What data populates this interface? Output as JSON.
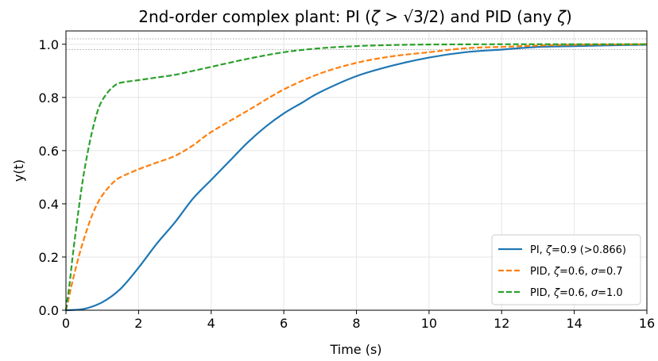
{
  "chart_data": {
    "type": "line",
    "title": "2nd-order complex plant: PI (ζ > √3/2) and PID (any ζ)",
    "title_parts": {
      "before": "2nd-order complex plant: PI (",
      "zeta": "ζ",
      "gt": " > ",
      "radical_sign": "√",
      "radicand": "3",
      "fraction_tail": "/2) and PID (any ",
      "zeta2": "ζ",
      "end": ")"
    },
    "xlabel": "Time (s)",
    "ylabel": "y(t)",
    "xlim": [
      0,
      16
    ],
    "ylim": [
      0,
      1.05
    ],
    "xticks": [
      0,
      2,
      4,
      6,
      8,
      10,
      12,
      14,
      16
    ],
    "yticks": [
      0.0,
      0.2,
      0.4,
      0.6,
      0.8,
      1.0
    ],
    "xtick_labels": [
      "0",
      "2",
      "4",
      "6",
      "8",
      "10",
      "12",
      "14",
      "16"
    ],
    "ytick_labels": [
      "0.0",
      "0.2",
      "0.4",
      "0.6",
      "0.8",
      "1.0"
    ],
    "grid": true,
    "reference_lines": [
      0.98,
      1.02
    ],
    "legend_position": "lower-right",
    "series": [
      {
        "name": "PI, ζ=0.9 (>0.866)",
        "label_parts": [
          "PI, ",
          "ζ",
          "=0.9 (>0.866)"
        ],
        "color": "#1f77b4",
        "style": "solid",
        "x": [
          0,
          0.5,
          1,
          1.5,
          2,
          2.5,
          3,
          3.5,
          4,
          4.5,
          5,
          5.5,
          6,
          6.5,
          7,
          8,
          9,
          10,
          11,
          12,
          13,
          14,
          15,
          16
        ],
        "y": [
          0,
          0.005,
          0.03,
          0.08,
          0.16,
          0.25,
          0.33,
          0.42,
          0.49,
          0.56,
          0.63,
          0.69,
          0.74,
          0.78,
          0.82,
          0.88,
          0.92,
          0.95,
          0.97,
          0.98,
          0.99,
          0.993,
          0.996,
          0.998
        ]
      },
      {
        "name": "PID, ζ=0.6, σ=0.7",
        "label_parts": [
          "PID, ",
          "ζ",
          "=0.6, ",
          "σ",
          "=0.7"
        ],
        "color": "#ff7f0e",
        "style": "dashed",
        "x": [
          0,
          0.1,
          0.2,
          0.35,
          0.5,
          0.7,
          0.9,
          1.1,
          1.3,
          1.5,
          2,
          2.5,
          3,
          3.5,
          4,
          5,
          6,
          7,
          8,
          9,
          10,
          11,
          12,
          13,
          14,
          16
        ],
        "y": [
          0,
          0.06,
          0.12,
          0.2,
          0.27,
          0.35,
          0.41,
          0.45,
          0.48,
          0.5,
          0.53,
          0.555,
          0.58,
          0.62,
          0.67,
          0.75,
          0.83,
          0.89,
          0.93,
          0.955,
          0.97,
          0.985,
          0.99,
          0.995,
          0.998,
          1.0
        ]
      },
      {
        "name": "PID, ζ=0.6, σ=1.0",
        "label_parts": [
          "PID, ",
          "ζ",
          "=0.6, ",
          "σ",
          "=1.0"
        ],
        "color": "#2ca02c",
        "style": "dashed",
        "x": [
          0,
          0.1,
          0.2,
          0.35,
          0.5,
          0.7,
          0.9,
          1.1,
          1.3,
          1.5,
          2,
          2.5,
          3,
          3.5,
          4,
          5,
          6,
          7,
          8,
          9,
          10,
          12,
          14,
          16
        ],
        "y": [
          0,
          0.1,
          0.22,
          0.38,
          0.52,
          0.66,
          0.76,
          0.81,
          0.84,
          0.855,
          0.865,
          0.875,
          0.885,
          0.9,
          0.915,
          0.945,
          0.97,
          0.985,
          0.993,
          0.997,
          0.999,
          1.0,
          1.0,
          1.0
        ]
      }
    ]
  }
}
